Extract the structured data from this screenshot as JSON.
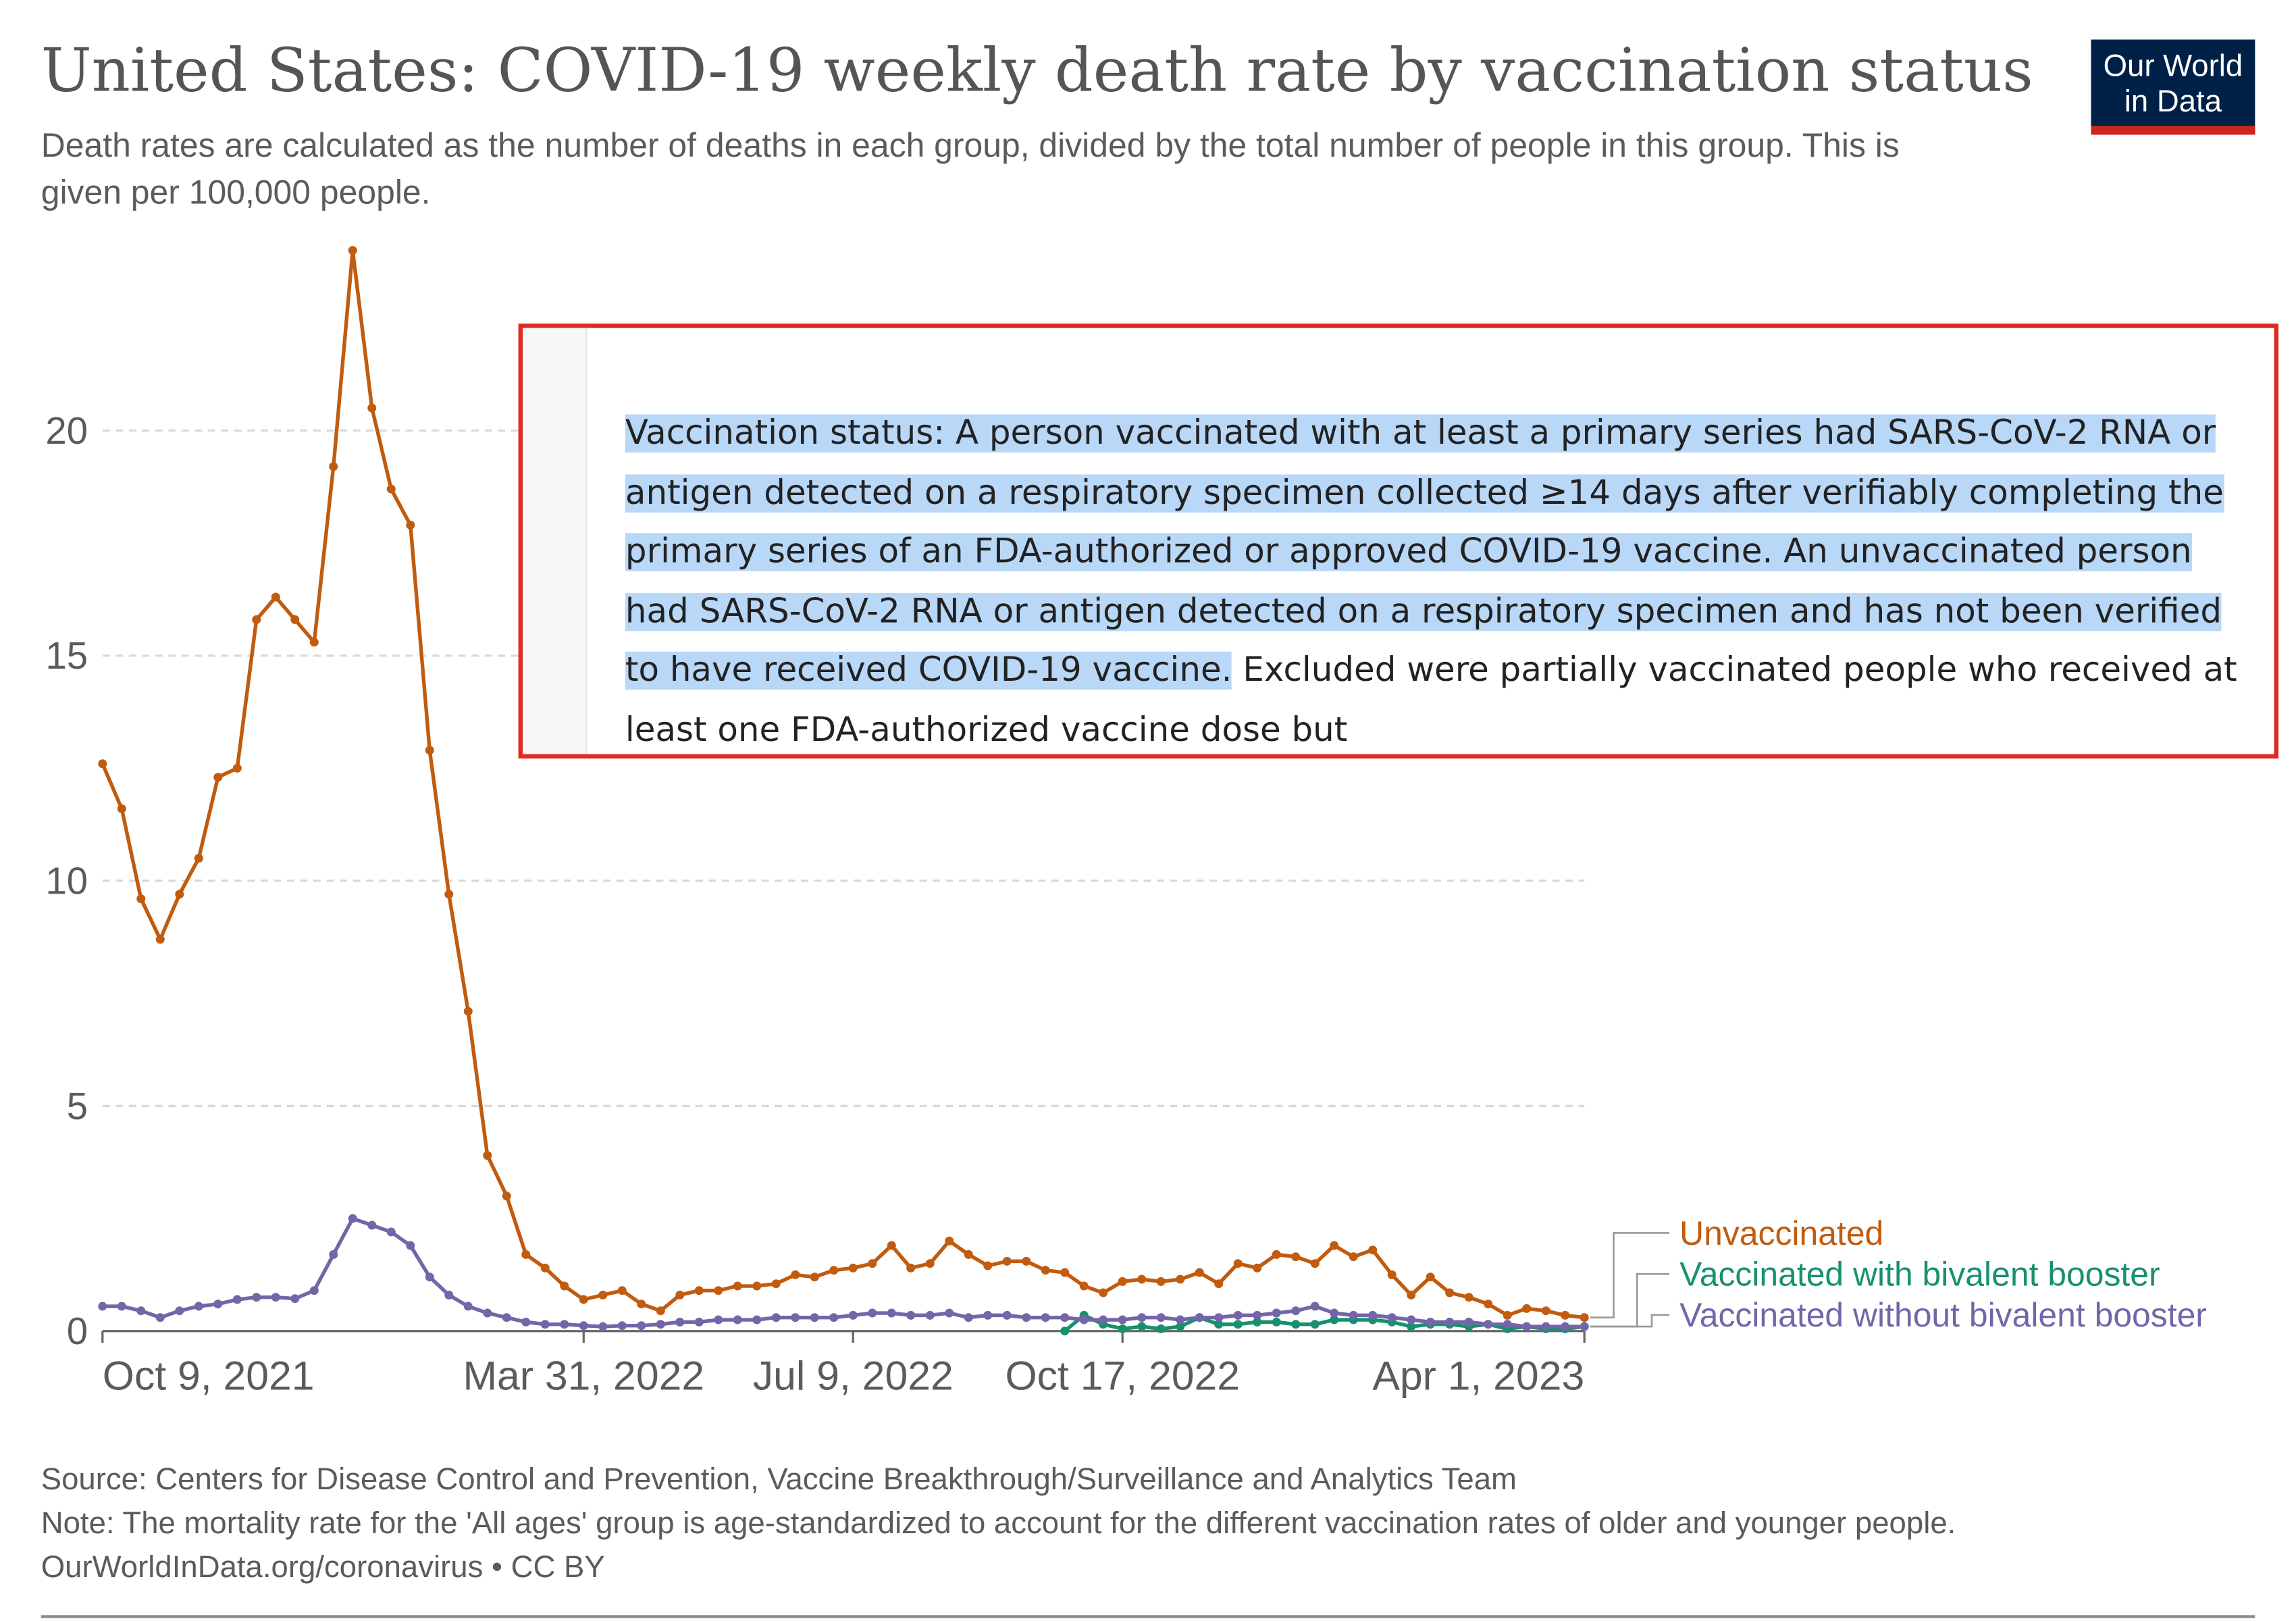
{
  "header": {
    "title": "United States: COVID-19 weekly death rate by vaccination status",
    "subtitle": "Death rates are calculated as the number of deaths in each group, divided by the total number of people in this group. This is given per 100,000 people."
  },
  "logo": {
    "line1": "Our World",
    "line2": "in Data"
  },
  "overlay": {
    "cutoff_text": "...",
    "highlighted_text": "Vaccination status: A person vaccinated with at least a primary series had SARS-CoV-2 RNA or antigen detected on a respiratory specimen collected ≥14 days after verifiably completing the primary series of an FDA-authorized or approved COVID-19 vaccine. An unvaccinated person had SARS-CoV-2 RNA or antigen detected on a respiratory specimen and has not been verified to have received COVID-19 vaccine.",
    "plain_text": " Excluded were partially vaccinated people who received at least one FDA-authorized vaccine dose but"
  },
  "footer": {
    "source": "Source: Centers for Disease Control and Prevention, Vaccine Breakthrough/Surveillance and Analytics Team",
    "note": "Note: The mortality rate for the 'All ages' group is age-standardized to account for the different vaccination rates of older and younger people.",
    "credit": "OurWorldInData.org/coronavirus • CC BY"
  },
  "colors": {
    "unvaccinated": "#c15b0e",
    "bivalent": "#18906f",
    "without_bivalent": "#7465a8",
    "grid": "#d9d9d9",
    "axis": "#666666"
  },
  "chart_data": {
    "type": "line",
    "title": "United States: COVID-19 weekly death rate by vaccination status",
    "ylim": [
      0,
      24
    ],
    "yticks": [
      0,
      5,
      10,
      15,
      20
    ],
    "xticks": [
      {
        "label": "Oct 9, 2021",
        "week": 0
      },
      {
        "label": "Mar 31, 2022",
        "week": 25
      },
      {
        "label": "Jul 9, 2022",
        "week": 39
      },
      {
        "label": "Oct 17, 2022",
        "week": 53
      },
      {
        "label": "Apr 1, 2023",
        "week": 77
      }
    ],
    "grid": true,
    "legend": "right",
    "series": [
      {
        "name": "Unvaccinated",
        "color_key": "unvaccinated",
        "start_week": 0,
        "values": [
          12.6,
          11.6,
          9.6,
          8.7,
          9.7,
          10.5,
          12.3,
          12.5,
          15.8,
          16.3,
          15.8,
          15.3,
          19.2,
          24.0,
          20.5,
          18.7,
          17.9,
          12.9,
          9.7,
          7.1,
          3.9,
          3.0,
          1.7,
          1.4,
          1.0,
          0.7,
          0.8,
          0.9,
          0.6,
          0.45,
          0.8,
          0.9,
          0.9,
          1.0,
          1.0,
          1.05,
          1.25,
          1.2,
          1.35,
          1.4,
          1.5,
          1.9,
          1.4,
          1.5,
          2.0,
          1.7,
          1.45,
          1.55,
          1.55,
          1.35,
          1.3,
          1.0,
          0.85,
          1.1,
          1.15,
          1.1,
          1.15,
          1.3,
          1.05,
          1.5,
          1.4,
          1.7,
          1.65,
          1.5,
          1.9,
          1.65,
          1.8,
          1.25,
          0.8,
          1.2,
          0.85,
          0.75,
          0.6,
          0.35,
          0.5,
          0.45,
          0.35,
          0.3
        ]
      },
      {
        "name": "Vaccinated with bivalent booster",
        "color_key": "bivalent",
        "start_week": 50,
        "values": [
          0.0,
          0.35,
          0.15,
          0.05,
          0.1,
          0.05,
          0.1,
          0.3,
          0.15,
          0.15,
          0.2,
          0.2,
          0.15,
          0.15,
          0.25,
          0.25,
          0.25,
          0.2,
          0.1,
          0.15,
          0.15,
          0.1,
          0.15,
          0.05,
          0.1,
          0.05,
          0.05,
          0.1
        ]
      },
      {
        "name": "Vaccinated without bivalent booster",
        "color_key": "without_bivalent",
        "start_week": 0,
        "values": [
          0.55,
          0.55,
          0.45,
          0.3,
          0.45,
          0.55,
          0.6,
          0.7,
          0.75,
          0.75,
          0.72,
          0.9,
          1.7,
          2.5,
          2.35,
          2.2,
          1.9,
          1.2,
          0.8,
          0.55,
          0.4,
          0.3,
          0.2,
          0.15,
          0.15,
          0.12,
          0.1,
          0.12,
          0.12,
          0.15,
          0.2,
          0.2,
          0.25,
          0.25,
          0.25,
          0.3,
          0.3,
          0.3,
          0.3,
          0.35,
          0.4,
          0.4,
          0.35,
          0.35,
          0.4,
          0.3,
          0.35,
          0.35,
          0.3,
          0.3,
          0.3,
          0.25,
          0.25,
          0.25,
          0.3,
          0.3,
          0.25,
          0.3,
          0.3,
          0.35,
          0.35,
          0.4,
          0.45,
          0.55,
          0.4,
          0.35,
          0.35,
          0.3,
          0.25,
          0.2,
          0.2,
          0.2,
          0.15,
          0.15,
          0.1,
          0.1,
          0.1,
          0.1
        ]
      }
    ]
  }
}
